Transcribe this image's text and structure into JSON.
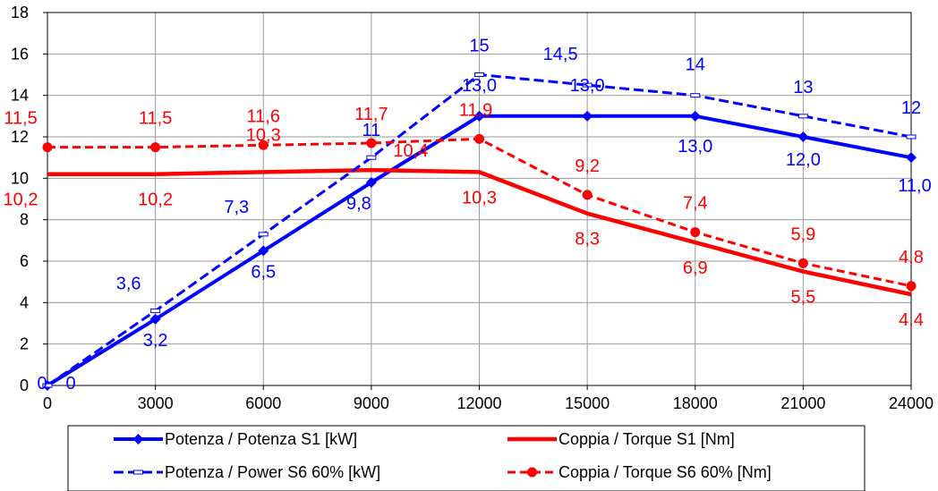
{
  "chart_data": {
    "type": "line",
    "x": [
      0,
      3000,
      6000,
      9000,
      12000,
      15000,
      18000,
      21000,
      24000
    ],
    "xlim": [
      0,
      24000
    ],
    "ylim": [
      0,
      18
    ],
    "x_ticks": [
      "0",
      "3000",
      "6000",
      "9000",
      "12000",
      "15000",
      "18000",
      "21000",
      "24000"
    ],
    "y_ticks": [
      "0",
      "2",
      "4",
      "6",
      "8",
      "10",
      "12",
      "14",
      "16",
      "18"
    ],
    "grid": true,
    "legend_position": "bottom",
    "series": [
      {
        "name": "Potenza / Potenza S1 [kW]",
        "color": "#0000ff",
        "style": "solid-diamond",
        "values": [
          0,
          3.2,
          6.5,
          9.8,
          13.0,
          13.0,
          13.0,
          12.0,
          11.0
        ],
        "labels": [
          "0",
          "3,2",
          "6,5",
          "9,8",
          "13,0",
          "13,0",
          "13,0",
          "12,0",
          "11,0"
        ]
      },
      {
        "name": "Coppia / Torque S1 [Nm]",
        "color": "#ff0000",
        "style": "solid",
        "values": [
          10.2,
          10.2,
          10.3,
          10.4,
          10.3,
          8.3,
          6.9,
          5.5,
          4.4
        ],
        "labels": [
          "10,2",
          "10,2",
          "10,3",
          "10,4",
          "10,3",
          "8,3",
          "6,9",
          "5,5",
          "4,4"
        ]
      },
      {
        "name": "Potenza / Power S6 60% [kW]",
        "color": "#0000ff",
        "style": "dashed-dash",
        "values": [
          0,
          3.6,
          7.3,
          11,
          15,
          14.5,
          14,
          13,
          12
        ],
        "labels": [
          "0",
          "3,6",
          "7,3",
          "11",
          "15",
          "14,5",
          "14",
          "13",
          "12"
        ]
      },
      {
        "name": "Coppia / Torque S6 60% [Nm]",
        "color": "#ff0000",
        "style": "dashed-circle",
        "values": [
          11.5,
          11.5,
          11.6,
          11.7,
          11.9,
          9.2,
          7.4,
          5.9,
          4.8
        ],
        "labels": [
          "11,5",
          "11,5",
          "11,6",
          "11,7",
          "11,9",
          "9,2",
          "7,4",
          "5,9",
          "4,8"
        ]
      }
    ]
  }
}
